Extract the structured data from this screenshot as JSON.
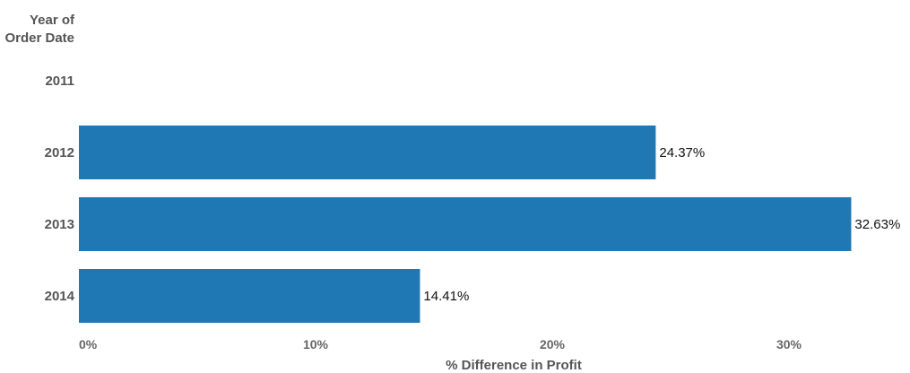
{
  "chart_data": {
    "type": "bar",
    "orientation": "horizontal",
    "row_header": [
      "Year of",
      "Order Date"
    ],
    "categories": [
      "2011",
      "2012",
      "2013",
      "2014"
    ],
    "values": [
      null,
      24.37,
      32.63,
      14.41
    ],
    "data_labels": [
      "",
      "24.37%",
      "32.63%",
      "14.41%"
    ],
    "xlabel": "% Difference in Profit",
    "ylabel": "",
    "xlim": [
      0,
      35
    ],
    "xticks": [
      0,
      10,
      20,
      30
    ],
    "xtick_labels": [
      "0%",
      "10%",
      "20%",
      "30%"
    ],
    "grid": false,
    "legend": "none",
    "bar_color": "#1f77b4",
    "text_color": "#555555"
  }
}
